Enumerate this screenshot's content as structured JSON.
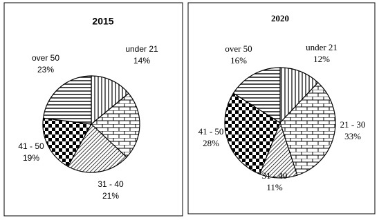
{
  "chart_data": [
    {
      "type": "pie",
      "title": "2015",
      "categories": [
        "under 21",
        null,
        "31 - 40",
        "41 - 50",
        "over 50"
      ],
      "values": [
        14,
        23,
        21,
        19,
        23
      ],
      "value_labels": [
        "14%",
        null,
        "21%",
        "19%",
        "23%"
      ]
    },
    {
      "type": "pie",
      "title": "2020",
      "categories": [
        "under 21",
        "21 - 30",
        "31 - 40",
        "41 - 50",
        "over 50"
      ],
      "values": [
        12,
        33,
        11,
        28,
        16
      ],
      "value_labels": [
        "12%",
        "33%",
        "11%",
        "28%",
        "16%"
      ]
    }
  ]
}
